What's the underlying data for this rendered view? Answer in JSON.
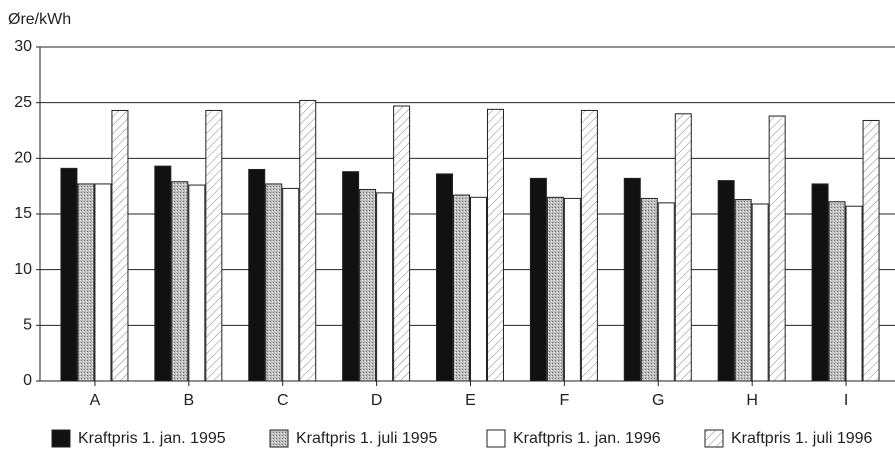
{
  "chart_data": {
    "type": "bar",
    "y_label": "Øre/kWh",
    "categories": [
      "A",
      "B",
      "C",
      "D",
      "E",
      "F",
      "G",
      "H",
      "I"
    ],
    "series": [
      {
        "name": "Kraftpris 1. jan. 1995",
        "color": "#111111",
        "pattern": "solid",
        "values": [
          19.1,
          19.3,
          19.0,
          18.8,
          18.6,
          18.2,
          18.2,
          18.0,
          17.7
        ]
      },
      {
        "name": "Kraftpris 1. juli 1995",
        "color": "#a8a8a8",
        "pattern": "stipple",
        "values": [
          17.7,
          17.9,
          17.7,
          17.2,
          16.7,
          16.5,
          16.4,
          16.3,
          16.1
        ]
      },
      {
        "name": "Kraftpris 1. jan. 1996",
        "color": "#ffffff",
        "pattern": "solid",
        "values": [
          17.7,
          17.6,
          17.3,
          16.9,
          16.5,
          16.4,
          16.0,
          15.9,
          15.7
        ]
      },
      {
        "name": "Kraftpris 1. juli 1996",
        "color": "#ffffff",
        "pattern": "hatch",
        "values": [
          24.3,
          24.3,
          25.2,
          24.7,
          24.4,
          24.3,
          24.0,
          23.8,
          23.4
        ]
      }
    ],
    "ylim": [
      0,
      30
    ],
    "yticks": [
      0,
      5,
      10,
      15,
      20,
      25,
      30
    ],
    "grid": true,
    "legend": "bottom"
  }
}
